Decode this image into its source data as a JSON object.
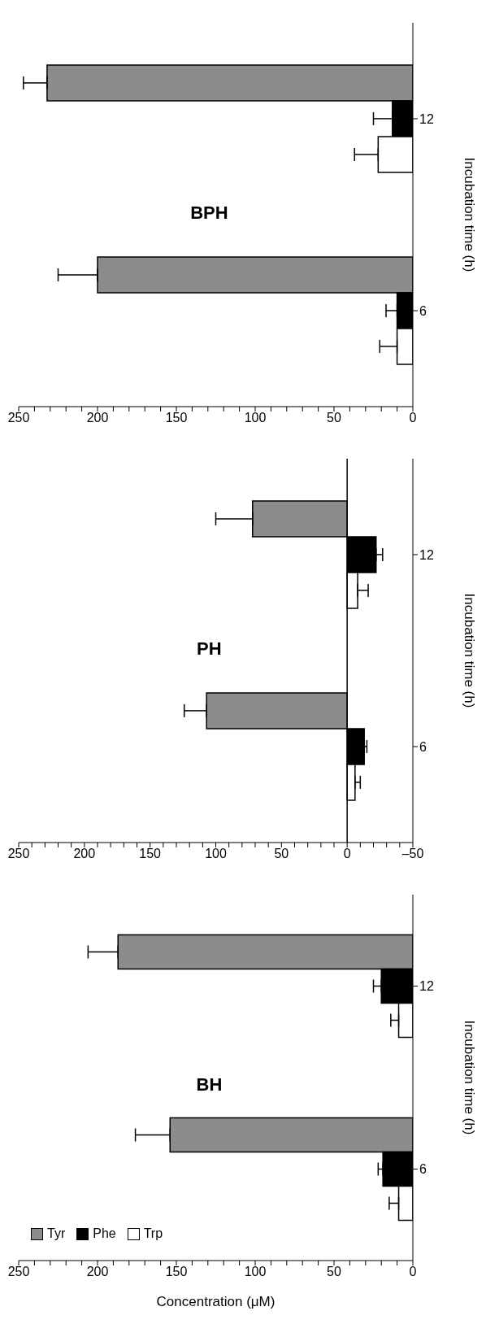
{
  "chart_data": [
    {
      "type": "bar",
      "orientation": "horizontal",
      "title": "BPH",
      "ylabel": "Incubation time (h)",
      "categories": [
        "12",
        "6"
      ],
      "series": [
        {
          "color": "#8c8c8c",
          "values": [
            232,
            200
          ],
          "errors": [
            [
              232,
              247
            ],
            [
              200,
              225
            ]
          ]
        },
        {
          "color": "#000000",
          "values": [
            13,
            10
          ],
          "errors": [
            [
              13,
              25
            ],
            [
              10,
              17
            ]
          ]
        },
        {
          "color": "#ffffff",
          "values": [
            22,
            10
          ],
          "errors": [
            [
              22,
              37
            ],
            [
              10,
              21
            ]
          ]
        }
      ],
      "xlim": [
        250,
        0
      ],
      "xticks": [
        0,
        {
          "value": 10,
          "label": null
        },
        {
          "value": 20,
          "label": null
        },
        {
          "value": 30,
          "label": null
        },
        {
          "value": 40,
          "label": null
        },
        50,
        {
          "value": 60,
          "label": null
        },
        {
          "value": 70,
          "label": null
        },
        {
          "value": 80,
          "label": null
        },
        {
          "value": 90,
          "label": null
        },
        100,
        {
          "value": 110,
          "label": null
        },
        {
          "value": 120,
          "label": null
        },
        {
          "value": 130,
          "label": null
        },
        {
          "value": 140,
          "label": null
        },
        150,
        {
          "value": 160,
          "label": null
        },
        {
          "value": 170,
          "label": null
        },
        {
          "value": 180,
          "label": null
        },
        {
          "value": 190,
          "label": null
        },
        200,
        {
          "value": 210,
          "label": null
        },
        {
          "value": 220,
          "label": null
        },
        {
          "value": 230,
          "label": null
        },
        {
          "value": 240,
          "label": null
        },
        250
      ]
    },
    {
      "type": "bar",
      "orientation": "horizontal",
      "title": "PH",
      "ylabel": "Incubation time (h)",
      "categories": [
        "12",
        "6"
      ],
      "series": [
        {
          "color": "#8c8c8c",
          "values": [
            72,
            107
          ],
          "errors": [
            [
              72,
              100
            ],
            [
              107,
              124
            ]
          ]
        },
        {
          "color": "#000000",
          "values": [
            -22,
            -13
          ],
          "errors": [
            [
              -27,
              -22
            ],
            [
              -15,
              -13
            ]
          ]
        },
        {
          "color": "#ffffff",
          "values": [
            -8,
            -6
          ],
          "errors": [
            [
              -16,
              -8
            ],
            [
              -10,
              -6
            ]
          ]
        }
      ],
      "ref_lines": [
        {
          "axis": "x",
          "value": 0,
          "color": "#000000"
        }
      ],
      "xlim": [
        250,
        -50
      ],
      "xticks": [
        {
          "value": -50,
          "label": "–50"
        },
        {
          "value": -40,
          "label": null
        },
        {
          "value": -30,
          "label": null
        },
        {
          "value": -20,
          "label": null
        },
        {
          "value": -10,
          "label": null
        },
        0,
        {
          "value": 10,
          "label": null
        },
        {
          "value": 20,
          "label": null
        },
        {
          "value": 30,
          "label": null
        },
        {
          "value": 40,
          "label": null
        },
        50,
        {
          "value": 60,
          "label": null
        },
        {
          "value": 70,
          "label": null
        },
        {
          "value": 80,
          "label": null
        },
        {
          "value": 90,
          "label": null
        },
        100,
        {
          "value": 110,
          "label": null
        },
        {
          "value": 120,
          "label": null
        },
        {
          "value": 130,
          "label": null
        },
        {
          "value": 140,
          "label": null
        },
        150,
        {
          "value": 160,
          "label": null
        },
        {
          "value": 170,
          "label": null
        },
        {
          "value": 180,
          "label": null
        },
        {
          "value": 190,
          "label": null
        },
        200,
        {
          "value": 210,
          "label": null
        },
        {
          "value": 220,
          "label": null
        },
        {
          "value": 230,
          "label": null
        },
        {
          "value": 240,
          "label": null
        },
        250
      ]
    },
    {
      "type": "bar",
      "orientation": "horizontal",
      "title": "BH",
      "xlabel": "Concentration (μM)",
      "ylabel": "Incubation time (h)",
      "categories": [
        "12",
        "6"
      ],
      "legend": "bottom left",
      "series": [
        {
          "name": "Tyr",
          "color": "#8c8c8c",
          "values": [
            187,
            154
          ],
          "errors": [
            [
              187,
              206
            ],
            [
              154,
              176
            ]
          ]
        },
        {
          "name": "Phe",
          "color": "#000000",
          "values": [
            20,
            19
          ],
          "errors": [
            [
              20,
              25
            ],
            [
              19,
              22
            ]
          ]
        },
        {
          "name": "Trp",
          "color": "#ffffff",
          "values": [
            9,
            9
          ],
          "errors": [
            [
              9,
              14
            ],
            [
              9,
              15
            ]
          ]
        }
      ],
      "xlim": [
        250,
        0
      ],
      "xticks": [
        0,
        {
          "value": 10,
          "label": null
        },
        {
          "value": 20,
          "label": null
        },
        {
          "value": 30,
          "label": null
        },
        {
          "value": 40,
          "label": null
        },
        50,
        {
          "value": 60,
          "label": null
        },
        {
          "value": 70,
          "label": null
        },
        {
          "value": 80,
          "label": null
        },
        {
          "value": 90,
          "label": null
        },
        100,
        {
          "value": 110,
          "label": null
        },
        {
          "value": 120,
          "label": null
        },
        {
          "value": 130,
          "label": null
        },
        {
          "value": 140,
          "label": null
        },
        150,
        {
          "value": 160,
          "label": null
        },
        {
          "value": 170,
          "label": null
        },
        {
          "value": 180,
          "label": null
        },
        {
          "value": 190,
          "label": null
        },
        200,
        {
          "value": 210,
          "label": null
        },
        {
          "value": 220,
          "label": null
        },
        {
          "value": 230,
          "label": null
        },
        {
          "value": 240,
          "label": null
        },
        250
      ]
    }
  ]
}
